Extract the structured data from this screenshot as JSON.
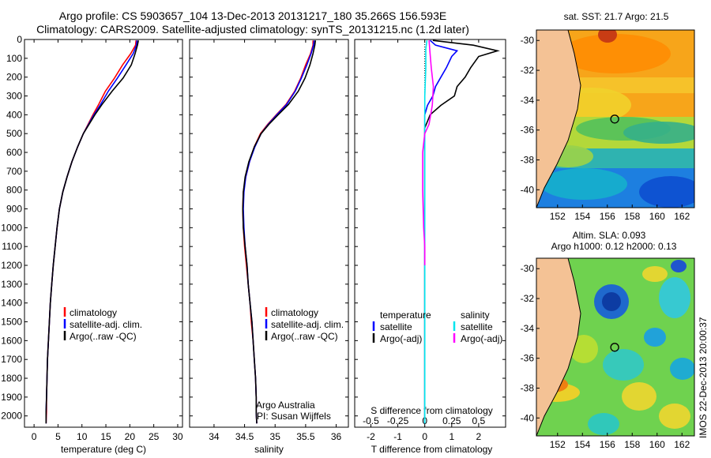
{
  "titles": {
    "line1": "Argo profile: CS 5903657_104 13-Dec-2013 20131217_180 35.266S 156.593E",
    "line2": "Climatology: CARS2009. Satellite-adjusted climatology: synTS_20131215.nc (1.2d later)"
  },
  "colors": {
    "climatology": "#ff0000",
    "satellite": "#0000ff",
    "argo": "#000000",
    "sat_salinity": "#00e5ee",
    "argo_adj_salinity": "#ff00ff"
  },
  "footer": {
    "imos_stamp": "IMOS 22-Dec-2013 20:00:37",
    "argo_credit": "Argo Australia",
    "pi_credit": "PI: Susan Wijffels"
  },
  "chart_data": [
    {
      "type": "line",
      "id": "temperature",
      "xlabel": "temperature (deg C)",
      "ylabel": "",
      "xlim": [
        -2,
        31
      ],
      "ylim": [
        2060,
        0
      ],
      "xticks": [
        0,
        5,
        10,
        15,
        20,
        25,
        30
      ],
      "xtick_labels": [
        "0",
        "5",
        "10",
        "15",
        "20",
        "25",
        "30"
      ],
      "yticks": [
        0,
        100,
        200,
        300,
        400,
        500,
        600,
        700,
        800,
        900,
        1000,
        1100,
        1200,
        1300,
        1400,
        1500,
        1600,
        1700,
        1800,
        1900,
        2000
      ],
      "ytick_labels": [
        "0",
        "100",
        "200",
        "300",
        "400",
        "500",
        "600",
        "700",
        "800",
        "900",
        "1000",
        "1100",
        "1200",
        "1300",
        "1400",
        "1500",
        "1600",
        "1700",
        "1800",
        "1900",
        "2000"
      ],
      "legend": [
        "climatology",
        "satellite-adj. clim.",
        "Argo(..raw -QC)"
      ],
      "series": [
        {
          "name": "climatology",
          "color": "#ff0000",
          "x": [
            21.3,
            21.2,
            20.2,
            18.5,
            16.8,
            14.9,
            13.5,
            12.3,
            11.3,
            10.3,
            9.1,
            7.9,
            6.9,
            6.0,
            5.3,
            4.8,
            4.4,
            4.0,
            3.7,
            3.4,
            3.2,
            3.0,
            2.8,
            2.7,
            2.6,
            2.6,
            2.5
          ],
          "y": [
            5,
            30,
            75,
            135,
            205,
            275,
            345,
            400,
            450,
            500,
            570,
            650,
            730,
            810,
            900,
            1000,
            1100,
            1200,
            1300,
            1400,
            1500,
            1600,
            1700,
            1800,
            1900,
            1980,
            2040
          ]
        },
        {
          "name": "satellite-adj. clim.",
          "color": "#0000ff",
          "x": [
            21.5,
            21.4,
            20.7,
            19.2,
            17.4,
            15.5,
            13.9,
            12.5,
            11.4,
            10.3,
            9.1,
            7.9,
            6.9,
            6.0,
            5.3,
            4.8,
            4.4,
            4.0,
            3.7,
            3.4,
            3.2,
            3.0,
            2.8,
            2.7,
            2.6,
            2.5,
            2.5
          ],
          "y": [
            5,
            30,
            75,
            135,
            205,
            275,
            345,
            400,
            450,
            500,
            570,
            650,
            730,
            810,
            900,
            1000,
            1100,
            1200,
            1300,
            1400,
            1500,
            1600,
            1700,
            1800,
            1900,
            1980,
            2040
          ]
        },
        {
          "name": "Argo(..raw -QC)",
          "color": "#000000",
          "x": [
            21.8,
            21.6,
            21.1,
            20.3,
            18.6,
            16.3,
            14.2,
            12.7,
            11.5,
            10.3,
            9.1,
            7.9,
            6.9,
            6.0,
            5.3,
            4.8,
            4.4,
            4.0,
            3.7,
            3.4,
            3.2,
            3.0,
            2.8,
            2.7,
            2.6,
            2.5,
            2.5
          ],
          "y": [
            5,
            30,
            75,
            135,
            205,
            275,
            345,
            400,
            450,
            500,
            570,
            650,
            730,
            810,
            900,
            1000,
            1100,
            1200,
            1300,
            1400,
            1500,
            1600,
            1700,
            1800,
            1900,
            1980,
            2040
          ]
        }
      ]
    },
    {
      "type": "line",
      "id": "salinity",
      "xlabel": "salinity",
      "ylabel": "",
      "xlim": [
        33.6,
        36.2
      ],
      "ylim": [
        2060,
        0
      ],
      "xticks": [
        34,
        34.5,
        35,
        35.5,
        36
      ],
      "xtick_labels": [
        "34",
        "34.5",
        "35",
        "35.5",
        "36"
      ],
      "legend": [
        "climatology",
        "satellite-adj. clim.",
        "Argo(..raw -QC)"
      ],
      "series": [
        {
          "name": "climatology",
          "color": "#ff0000",
          "x": [
            35.62,
            35.62,
            35.58,
            35.5,
            35.42,
            35.32,
            35.18,
            35.02,
            34.88,
            34.76,
            34.66,
            34.58,
            34.52,
            34.48,
            34.47,
            34.48,
            34.5,
            34.53,
            34.56,
            34.59,
            34.61,
            34.64,
            34.66,
            34.68,
            34.69,
            34.69,
            34.7
          ],
          "y": [
            5,
            30,
            75,
            135,
            205,
            275,
            345,
            400,
            450,
            500,
            570,
            650,
            730,
            810,
            900,
            1000,
            1100,
            1200,
            1300,
            1400,
            1500,
            1600,
            1700,
            1800,
            1900,
            1980,
            2040
          ]
        },
        {
          "name": "satellite-adj. clim.",
          "color": "#0000ff",
          "x": [
            35.64,
            35.63,
            35.59,
            35.52,
            35.43,
            35.33,
            35.19,
            35.03,
            34.89,
            34.77,
            34.67,
            34.58,
            34.52,
            34.49,
            34.48,
            34.49,
            34.51,
            34.54,
            34.56,
            34.59,
            34.62,
            34.64,
            34.66,
            34.68,
            34.69,
            34.69,
            34.7
          ],
          "y": [
            5,
            30,
            75,
            135,
            205,
            275,
            345,
            400,
            450,
            500,
            570,
            650,
            730,
            810,
            900,
            1000,
            1100,
            1200,
            1300,
            1400,
            1500,
            1600,
            1700,
            1800,
            1900,
            1980,
            2040
          ]
        },
        {
          "name": "Argo(..raw -QC)",
          "color": "#000000",
          "x": [
            35.66,
            35.65,
            35.62,
            35.57,
            35.49,
            35.38,
            35.22,
            35.05,
            34.9,
            34.77,
            34.66,
            34.57,
            34.51,
            34.48,
            34.47,
            34.48,
            34.51,
            34.54,
            34.56,
            34.59,
            34.62,
            34.64,
            34.66,
            34.68,
            34.69,
            34.69,
            34.7
          ],
          "y": [
            5,
            30,
            75,
            135,
            205,
            275,
            345,
            400,
            450,
            500,
            570,
            650,
            730,
            810,
            900,
            1000,
            1100,
            1200,
            1300,
            1400,
            1500,
            1600,
            1700,
            1800,
            1900,
            1980,
            2040
          ]
        }
      ]
    },
    {
      "type": "line",
      "id": "difference",
      "xlabel": "T difference from climatology",
      "top_axis_label": "S difference from climatology",
      "xlim": [
        -2.6,
        3.0
      ],
      "ylim": [
        2060,
        0
      ],
      "xticks": [
        -2,
        -1,
        0,
        1,
        2
      ],
      "xtick_labels": [
        "-2",
        "-1",
        "0",
        "1",
        "2"
      ],
      "sticks": [
        -0.5,
        -0.25,
        0,
        0.25,
        0.5
      ],
      "stick_labels": [
        "-0.5",
        "-0.25",
        "0",
        "0.25",
        "0.5"
      ],
      "legend_temperature_title": "temperature",
      "legend_salinity_title": "salinity",
      "legend_temperature": [
        "satellite",
        "Argo(-adj)"
      ],
      "legend_salinity": [
        "satellite",
        "Argo(-adj)"
      ],
      "series": [
        {
          "name": "T satellite",
          "color": "#0000ff",
          "x": [
            0.2,
            0.4,
            1.2,
            1.0,
            0.8,
            0.6,
            0.4,
            0.3,
            0.1,
            0.0,
            0,
            0,
            0,
            0,
            0,
            0
          ],
          "y": [
            5,
            30,
            60,
            90,
            150,
            200,
            250,
            300,
            350,
            400,
            500,
            700,
            900,
            1100,
            1500,
            2040
          ]
        },
        {
          "name": "T Argo(-adj)",
          "color": "#000000",
          "x": [
            0.3,
            1.8,
            2.7,
            2.0,
            1.7,
            1.5,
            1.2,
            1.1,
            0.6,
            0.2,
            0.0,
            0,
            0,
            0,
            0,
            0
          ],
          "y": [
            5,
            30,
            60,
            90,
            150,
            200,
            250,
            300,
            350,
            400,
            470,
            600,
            900,
            1100,
            1500,
            2040
          ]
        },
        {
          "name": "S satellite",
          "color": "#00e5ee",
          "x": [
            0.02,
            0.01,
            0.01,
            0.0,
            0.0,
            0,
            0,
            0,
            0,
            0,
            0
          ],
          "y": [
            5,
            50,
            150,
            300,
            450,
            600,
            900,
            1200,
            1500,
            1800,
            2040
          ]
        },
        {
          "name": "S Argo(-adj)",
          "color": "#ff00ff",
          "x": [
            0.04,
            0.05,
            0.06,
            0.08,
            0.07,
            0.04,
            0.0,
            -0.02,
            -0.02,
            -0.01,
            0,
            0
          ],
          "y": [
            5,
            80,
            150,
            250,
            350,
            450,
            500,
            600,
            800,
            1000,
            1100,
            1200
          ]
        }
      ]
    },
    {
      "type": "heatmap",
      "id": "sst_map",
      "title": "sat. SST: 21.7  Argo: 21.5",
      "xlim": [
        150.3,
        163
      ],
      "ylim": [
        -41.2,
        -29.3
      ],
      "xticks": [
        152,
        154,
        156,
        158,
        160,
        162
      ],
      "xtick_labels": [
        "152",
        "154",
        "156",
        "158",
        "160",
        "162"
      ],
      "yticks": [
        -30,
        -32,
        -34,
        -36,
        -38,
        -40
      ],
      "ytick_labels": [
        "-30",
        "-32",
        "-34",
        "-36",
        "-38",
        "-40"
      ],
      "float_position": [
        156.593,
        -35.266
      ]
    },
    {
      "type": "heatmap",
      "id": "sla_map",
      "title": "Altim. SLA: 0.093",
      "subtitle": "Argo h1000: 0.12 h2000: 0.13",
      "xlim": [
        150.3,
        163
      ],
      "ylim": [
        -41.2,
        -29.3
      ],
      "xticks": [
        152,
        154,
        156,
        158,
        160,
        162
      ],
      "xtick_labels": [
        "152",
        "154",
        "156",
        "158",
        "160",
        "162"
      ],
      "yticks": [
        -30,
        -32,
        -34,
        -36,
        -38,
        -40
      ],
      "ytick_labels": [
        "-30",
        "-32",
        "-34",
        "-36",
        "-38",
        "-40"
      ],
      "float_position": [
        156.593,
        -35.266
      ]
    }
  ]
}
